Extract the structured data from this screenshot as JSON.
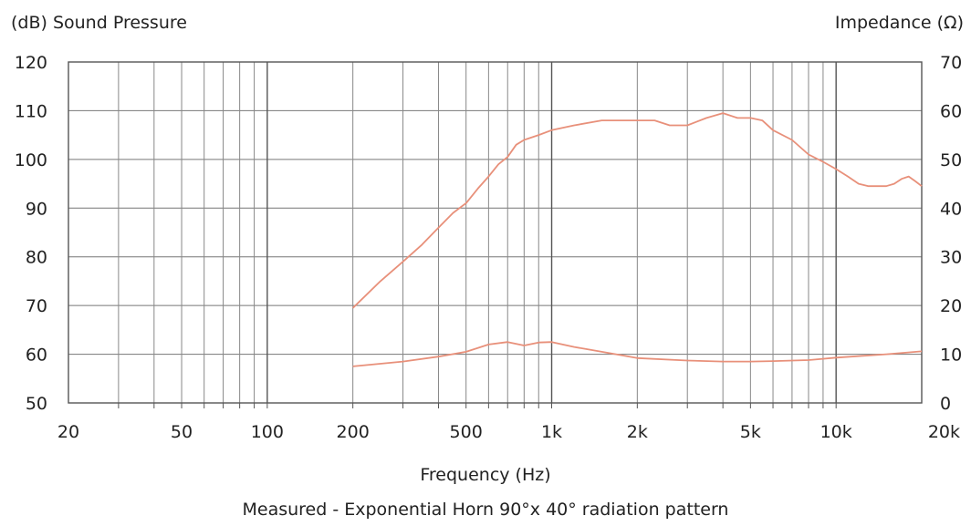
{
  "chart_data": {
    "type": "line",
    "title": "",
    "caption": "Measured - Exponential Horn 90°x 40° radiation pattern",
    "xlabel": "Frequency (Hz)",
    "ylabel_left": "(dB) Sound Pressure",
    "ylabel_right": "Impedance (Ω)",
    "x_scale": "log",
    "xlim": [
      20,
      20000
    ],
    "ylim_left": [
      50,
      120
    ],
    "ylim_right": [
      0,
      70
    ],
    "x_ticks": [
      {
        "value": 20,
        "label": "20"
      },
      {
        "value": 50,
        "label": "50"
      },
      {
        "value": 100,
        "label": "100"
      },
      {
        "value": 200,
        "label": "200"
      },
      {
        "value": 500,
        "label": "500"
      },
      {
        "value": 1000,
        "label": "1k"
      },
      {
        "value": 2000,
        "label": "2k"
      },
      {
        "value": 5000,
        "label": "5k"
      },
      {
        "value": 10000,
        "label": "10k"
      },
      {
        "value": 20000,
        "label": "20k"
      }
    ],
    "y_ticks_left": [
      50,
      60,
      70,
      80,
      90,
      100,
      110,
      120
    ],
    "y_ticks_right": [
      0,
      10,
      20,
      30,
      40,
      50,
      60,
      70
    ],
    "grid": true,
    "line_color": "#e8907a",
    "series": [
      {
        "axis": "left",
        "x": [
          200,
          250,
          300,
          350,
          400,
          450,
          500,
          550,
          600,
          650,
          700,
          750,
          800,
          900,
          1000,
          1200,
          1500,
          1800,
          2000,
          2300,
          2600,
          3000,
          3500,
          4000,
          4500,
          5000,
          5500,
          6000,
          7000,
          8000,
          9000,
          10000,
          11000,
          12000,
          13000,
          14000,
          15000,
          16000,
          17000,
          18000,
          19000,
          20000
        ],
        "y": [
          69.5,
          75,
          79,
          82.5,
          86,
          89,
          91,
          94,
          96.5,
          99,
          100.5,
          103,
          104,
          105,
          106,
          107,
          108,
          108,
          108,
          108,
          107,
          107,
          108.5,
          109.5,
          108.5,
          108.5,
          108,
          106,
          104,
          101,
          99.5,
          98,
          96.5,
          95,
          94.5,
          94.5,
          94.5,
          95,
          96,
          96.5,
          95.5,
          94.5
        ]
      },
      {
        "axis": "right",
        "x": [
          200,
          300,
          400,
          500,
          600,
          700,
          800,
          900,
          1000,
          1200,
          1500,
          2000,
          3000,
          4000,
          5000,
          6000,
          8000,
          10000,
          15000,
          20000
        ],
        "y": [
          7.5,
          8.5,
          9.5,
          10.5,
          12,
          12.5,
          11.8,
          12.4,
          12.5,
          11.5,
          10.5,
          9.2,
          8.7,
          8.5,
          8.5,
          8.6,
          8.8,
          9.3,
          10,
          10.6
        ]
      }
    ]
  }
}
